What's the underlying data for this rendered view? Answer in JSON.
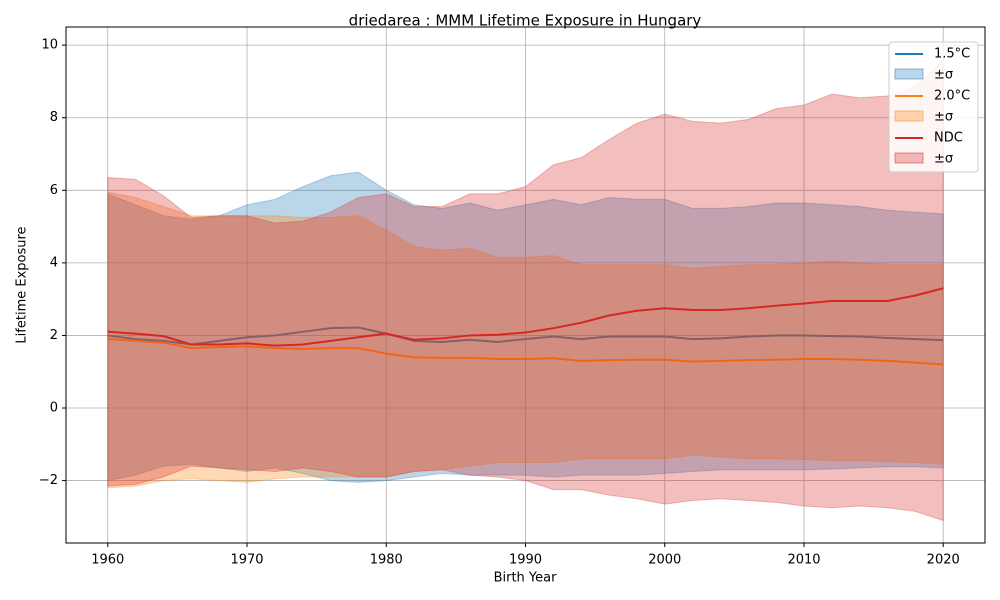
{
  "chart_data": {
    "type": "line-band",
    "title": "driedarea : MMM Lifetime Exposure in Hungary",
    "x_label": "Birth Year",
    "y_label": "Lifetime Exposure",
    "x": [
      1960,
      1962,
      1964,
      1966,
      1968,
      1970,
      1972,
      1974,
      1976,
      1978,
      1980,
      1982,
      1984,
      1986,
      1988,
      1990,
      1992,
      1994,
      1996,
      1998,
      2000,
      2002,
      2004,
      2006,
      2008,
      2010,
      2012,
      2014,
      2016,
      2018,
      2020
    ],
    "xlim": [
      1957,
      2023
    ],
    "ylim": [
      -3.72,
      10.5
    ],
    "xticks": [
      1960,
      1970,
      1980,
      1990,
      2000,
      2010,
      2020
    ],
    "yticks": [
      {
        "value": -2,
        "label": "−2"
      },
      0,
      2,
      4,
      6,
      8,
      10
    ],
    "grid": true,
    "legend": "upper right",
    "series": [
      {
        "name": "1.5°C",
        "band_name": "±σ",
        "color": "#1f77b4",
        "values": [
          2.0,
          1.9,
          1.85,
          1.75,
          1.85,
          1.95,
          2.0,
          2.1,
          2.2,
          2.22,
          2.05,
          1.85,
          1.82,
          1.88,
          1.82,
          1.9,
          1.97,
          1.9,
          1.97,
          1.97,
          1.97,
          1.9,
          1.92,
          1.97,
          2.0,
          2.0,
          1.98,
          1.97,
          1.93,
          1.9,
          1.87
        ],
        "upper": [
          5.9,
          5.6,
          5.3,
          5.2,
          5.3,
          5.6,
          5.75,
          6.1,
          6.4,
          6.5,
          6.0,
          5.6,
          5.5,
          5.65,
          5.45,
          5.6,
          5.75,
          5.6,
          5.8,
          5.75,
          5.75,
          5.5,
          5.5,
          5.55,
          5.65,
          5.65,
          5.6,
          5.55,
          5.45,
          5.4,
          5.35
        ],
        "lower": [
          -2.0,
          -1.85,
          -1.6,
          -1.55,
          -1.65,
          -1.75,
          -1.65,
          -1.8,
          -2.0,
          -2.05,
          -2.0,
          -1.9,
          -1.8,
          -1.85,
          -1.85,
          -1.85,
          -1.9,
          -1.85,
          -1.85,
          -1.85,
          -1.8,
          -1.75,
          -1.7,
          -1.7,
          -1.7,
          -1.7,
          -1.68,
          -1.65,
          -1.62,
          -1.62,
          -1.65
        ]
      },
      {
        "name": "2.0°C",
        "band_name": "±σ",
        "color": "#ff7f0e",
        "values": [
          1.9,
          1.85,
          1.8,
          1.65,
          1.68,
          1.7,
          1.65,
          1.63,
          1.65,
          1.65,
          1.5,
          1.4,
          1.38,
          1.38,
          1.35,
          1.35,
          1.37,
          1.3,
          1.32,
          1.33,
          1.33,
          1.28,
          1.3,
          1.32,
          1.33,
          1.35,
          1.35,
          1.33,
          1.3,
          1.25,
          1.2
        ],
        "upper": [
          5.95,
          5.8,
          5.55,
          5.3,
          5.3,
          5.3,
          5.3,
          5.25,
          5.25,
          5.3,
          4.9,
          4.45,
          4.35,
          4.4,
          4.15,
          4.15,
          4.2,
          3.95,
          3.95,
          3.95,
          3.95,
          3.85,
          3.9,
          3.95,
          3.95,
          4.0,
          4.05,
          4.0,
          3.95,
          3.95,
          3.95
        ],
        "lower": [
          -2.2,
          -2.15,
          -2.0,
          -1.95,
          -2.0,
          -2.05,
          -1.95,
          -1.9,
          -1.9,
          -1.9,
          -1.9,
          -1.75,
          -1.7,
          -1.6,
          -1.5,
          -1.5,
          -1.5,
          -1.4,
          -1.4,
          -1.4,
          -1.4,
          -1.3,
          -1.35,
          -1.4,
          -1.4,
          -1.42,
          -1.45,
          -1.45,
          -1.48,
          -1.5,
          -1.55
        ]
      },
      {
        "name": "NDC",
        "band_name": "±σ",
        "color": "#d62728",
        "values": [
          2.1,
          2.05,
          1.98,
          1.75,
          1.75,
          1.78,
          1.72,
          1.75,
          1.85,
          1.95,
          2.05,
          1.88,
          1.92,
          2.0,
          2.02,
          2.08,
          2.2,
          2.35,
          2.55,
          2.68,
          2.75,
          2.7,
          2.7,
          2.75,
          2.82,
          2.88,
          2.95,
          2.95,
          2.95,
          3.1,
          3.3
        ],
        "upper": [
          6.35,
          6.3,
          5.85,
          5.25,
          5.3,
          5.3,
          5.1,
          5.15,
          5.4,
          5.8,
          5.9,
          5.55,
          5.55,
          5.9,
          5.9,
          6.1,
          6.7,
          6.9,
          7.4,
          7.85,
          8.1,
          7.9,
          7.85,
          7.95,
          8.25,
          8.35,
          8.65,
          8.55,
          8.6,
          8.85,
          9.6
        ],
        "lower": [
          -2.15,
          -2.1,
          -1.9,
          -1.6,
          -1.65,
          -1.7,
          -1.75,
          -1.65,
          -1.75,
          -1.9,
          -1.9,
          -1.75,
          -1.7,
          -1.85,
          -1.9,
          -2.0,
          -2.25,
          -2.25,
          -2.4,
          -2.5,
          -2.65,
          -2.55,
          -2.5,
          -2.55,
          -2.6,
          -2.7,
          -2.75,
          -2.7,
          -2.75,
          -2.85,
          -3.1
        ]
      }
    ]
  }
}
